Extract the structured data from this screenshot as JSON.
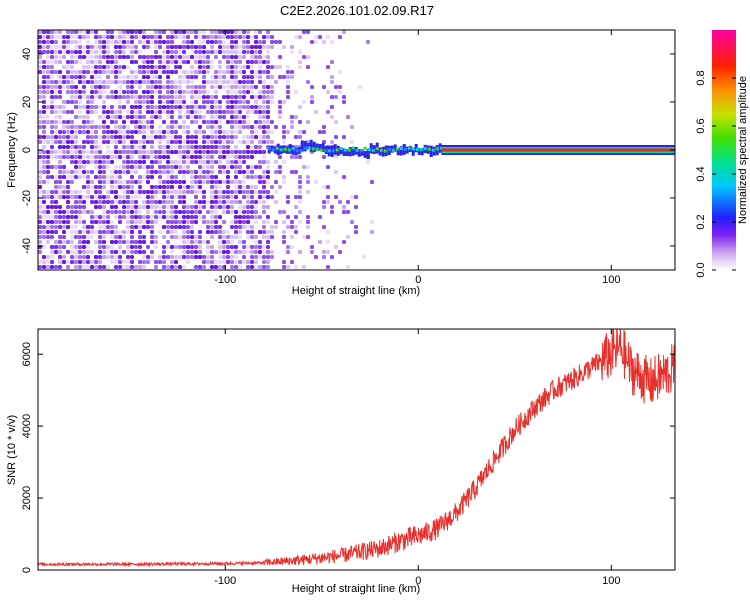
{
  "title": "C2E2.2026.101.02.09.R17",
  "chart_data": [
    {
      "type": "heatmap",
      "xlabel": "Height of straight line (km)",
      "ylabel": "Frequency (Hz)",
      "xlim": [
        -197,
        133
      ],
      "ylim": [
        -50,
        50
      ],
      "xticks": [
        -100,
        0,
        100
      ],
      "xtick_labels": [
        "-100",
        "0",
        "100"
      ],
      "yticks": [
        -40,
        -20,
        0,
        20,
        40
      ],
      "ytick_labels": [
        "-40",
        "-20",
        "0",
        "20",
        "40"
      ],
      "colorbar": {
        "label": "Normalized spectral amplitude",
        "range": [
          0,
          1
        ],
        "ticks": [
          0,
          0.2,
          0.4,
          0.6,
          0.8
        ],
        "tick_labels": [
          "0.0",
          "0.2",
          "0.4",
          "0.6",
          "0.8"
        ]
      },
      "features": {
        "noise_region_x": [
          -197,
          -78
        ],
        "sparse_noise_x": [
          -78,
          -35
        ],
        "signal_onset_x": -78,
        "signal_line_frequency": 0,
        "signal_strong_from_x": 12
      },
      "grid": false
    },
    {
      "type": "line",
      "xlabel": "Height of straight line (km)",
      "ylabel": "SNR (10 * v/v)",
      "xlim": [
        -197,
        133
      ],
      "ylim": [
        0,
        6700
      ],
      "xticks": [
        -100,
        0,
        100
      ],
      "xtick_labels": [
        "-100",
        "0",
        "100"
      ],
      "yticks": [
        0,
        2000,
        4000,
        6000
      ],
      "ytick_labels": [
        "0",
        "2000",
        "4000",
        "6000"
      ],
      "series": [
        {
          "color": "#e8302c",
          "x": [
            -197,
            -150,
            -100,
            -80,
            -60,
            -40,
            -20,
            -10,
            0,
            10,
            20,
            30,
            40,
            50,
            60,
            70,
            80,
            90,
            100,
            105,
            110,
            120,
            130,
            133
          ],
          "y": [
            160,
            160,
            180,
            200,
            280,
            400,
            600,
            800,
            950,
            1150,
            1600,
            2300,
            3100,
            3900,
            4500,
            5000,
            5300,
            5650,
            6000,
            6200,
            5600,
            5200,
            5500,
            5700
          ]
        }
      ],
      "grid": false
    }
  ]
}
